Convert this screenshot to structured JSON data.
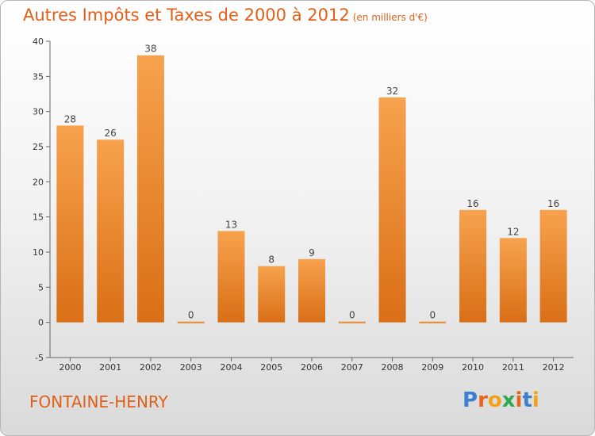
{
  "header": {
    "title": "Autres Impôts et Taxes de 2000 à 2012",
    "subtitle": "(en milliers d'€)"
  },
  "footer": {
    "commune": "FONTAINE-HENRY",
    "logo": [
      "P",
      "r",
      "o",
      "x",
      "i",
      "t",
      "i"
    ],
    "logo_colors": [
      "#3b7fd0",
      "#e8641a",
      "#f2a21a",
      "#2fa84f",
      "#e8641a",
      "#3b7fd0",
      "#f2a21a"
    ]
  },
  "chart_data": {
    "type": "bar",
    "title": "Autres Impôts et Taxes de 2000 à 2012",
    "xlabel": "",
    "ylabel": "",
    "categories": [
      "2000",
      "2001",
      "2002",
      "2003",
      "2004",
      "2005",
      "2006",
      "2007",
      "2008",
      "2009",
      "2010",
      "2011",
      "2012"
    ],
    "values": [
      28,
      26,
      38,
      0,
      13,
      8,
      9,
      0,
      32,
      0,
      16,
      12,
      16
    ],
    "ylim": [
      -5,
      40
    ],
    "yticks": [
      -5,
      0,
      5,
      10,
      15,
      20,
      25,
      30,
      35,
      40
    ],
    "grid": false,
    "bar_color_top": "#f7a24e",
    "bar_color_bottom": "#d96f16"
  }
}
